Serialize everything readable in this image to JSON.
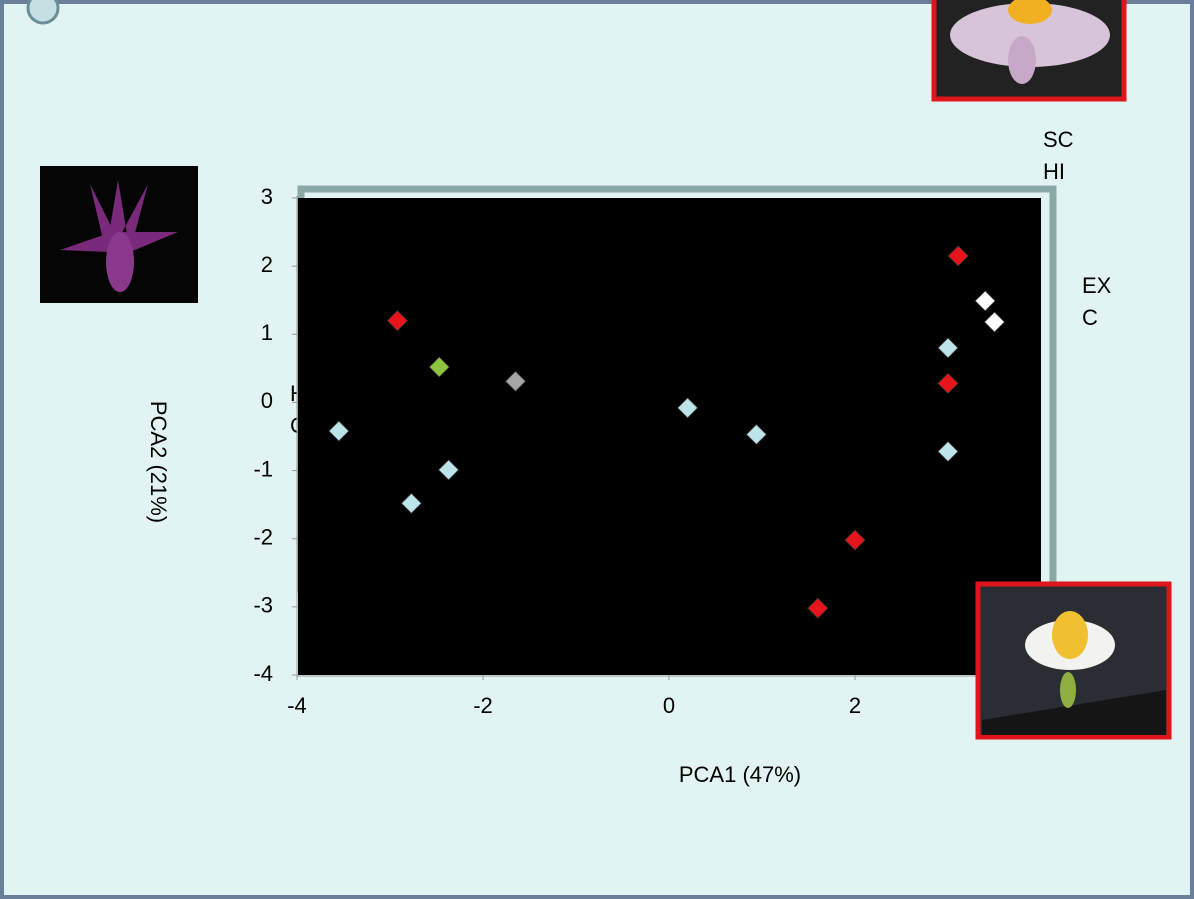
{
  "chart_data": {
    "type": "scatter",
    "x_label": "PCA1 (47%)",
    "y_label": "PCA2 (21%)",
    "annotations": [
      [
        "SC",
        "HI"
      ],
      [
        "EX",
        "C"
      ],
      [
        "H",
        "C"
      ]
    ],
    "xlim": [
      -4,
      4
    ],
    "xticks": [
      -4,
      -2,
      0,
      2
    ],
    "ylim": [
      -4,
      3
    ],
    "yticks": [
      3,
      2,
      1,
      0,
      -1,
      -2,
      -3,
      -4
    ],
    "series": [
      {
        "color": "#e8141b",
        "x": [
          -2.92,
          3.11,
          3.0,
          2.0,
          1.6
        ],
        "values": [
          1.2,
          2.15,
          0.28,
          -2.02,
          -3.02
        ]
      },
      {
        "color": "#8cc63f",
        "x": [
          -2.47
        ],
        "values": [
          0.52
        ]
      },
      {
        "color": "#a6a6a6",
        "x": [
          -1.65
        ],
        "values": [
          0.31
        ]
      },
      {
        "color": "#bde4e8",
        "x": [
          -3.55,
          -2.77,
          -2.37,
          0.2,
          0.94,
          3.0,
          3.0
        ],
        "values": [
          -0.42,
          -1.48,
          -0.99,
          -0.08,
          -0.47,
          0.8,
          -0.72
        ]
      },
      {
        "color": "#ffffff",
        "x": [
          3.4,
          3.5
        ],
        "values": [
          1.49,
          1.18
        ]
      }
    ]
  }
}
